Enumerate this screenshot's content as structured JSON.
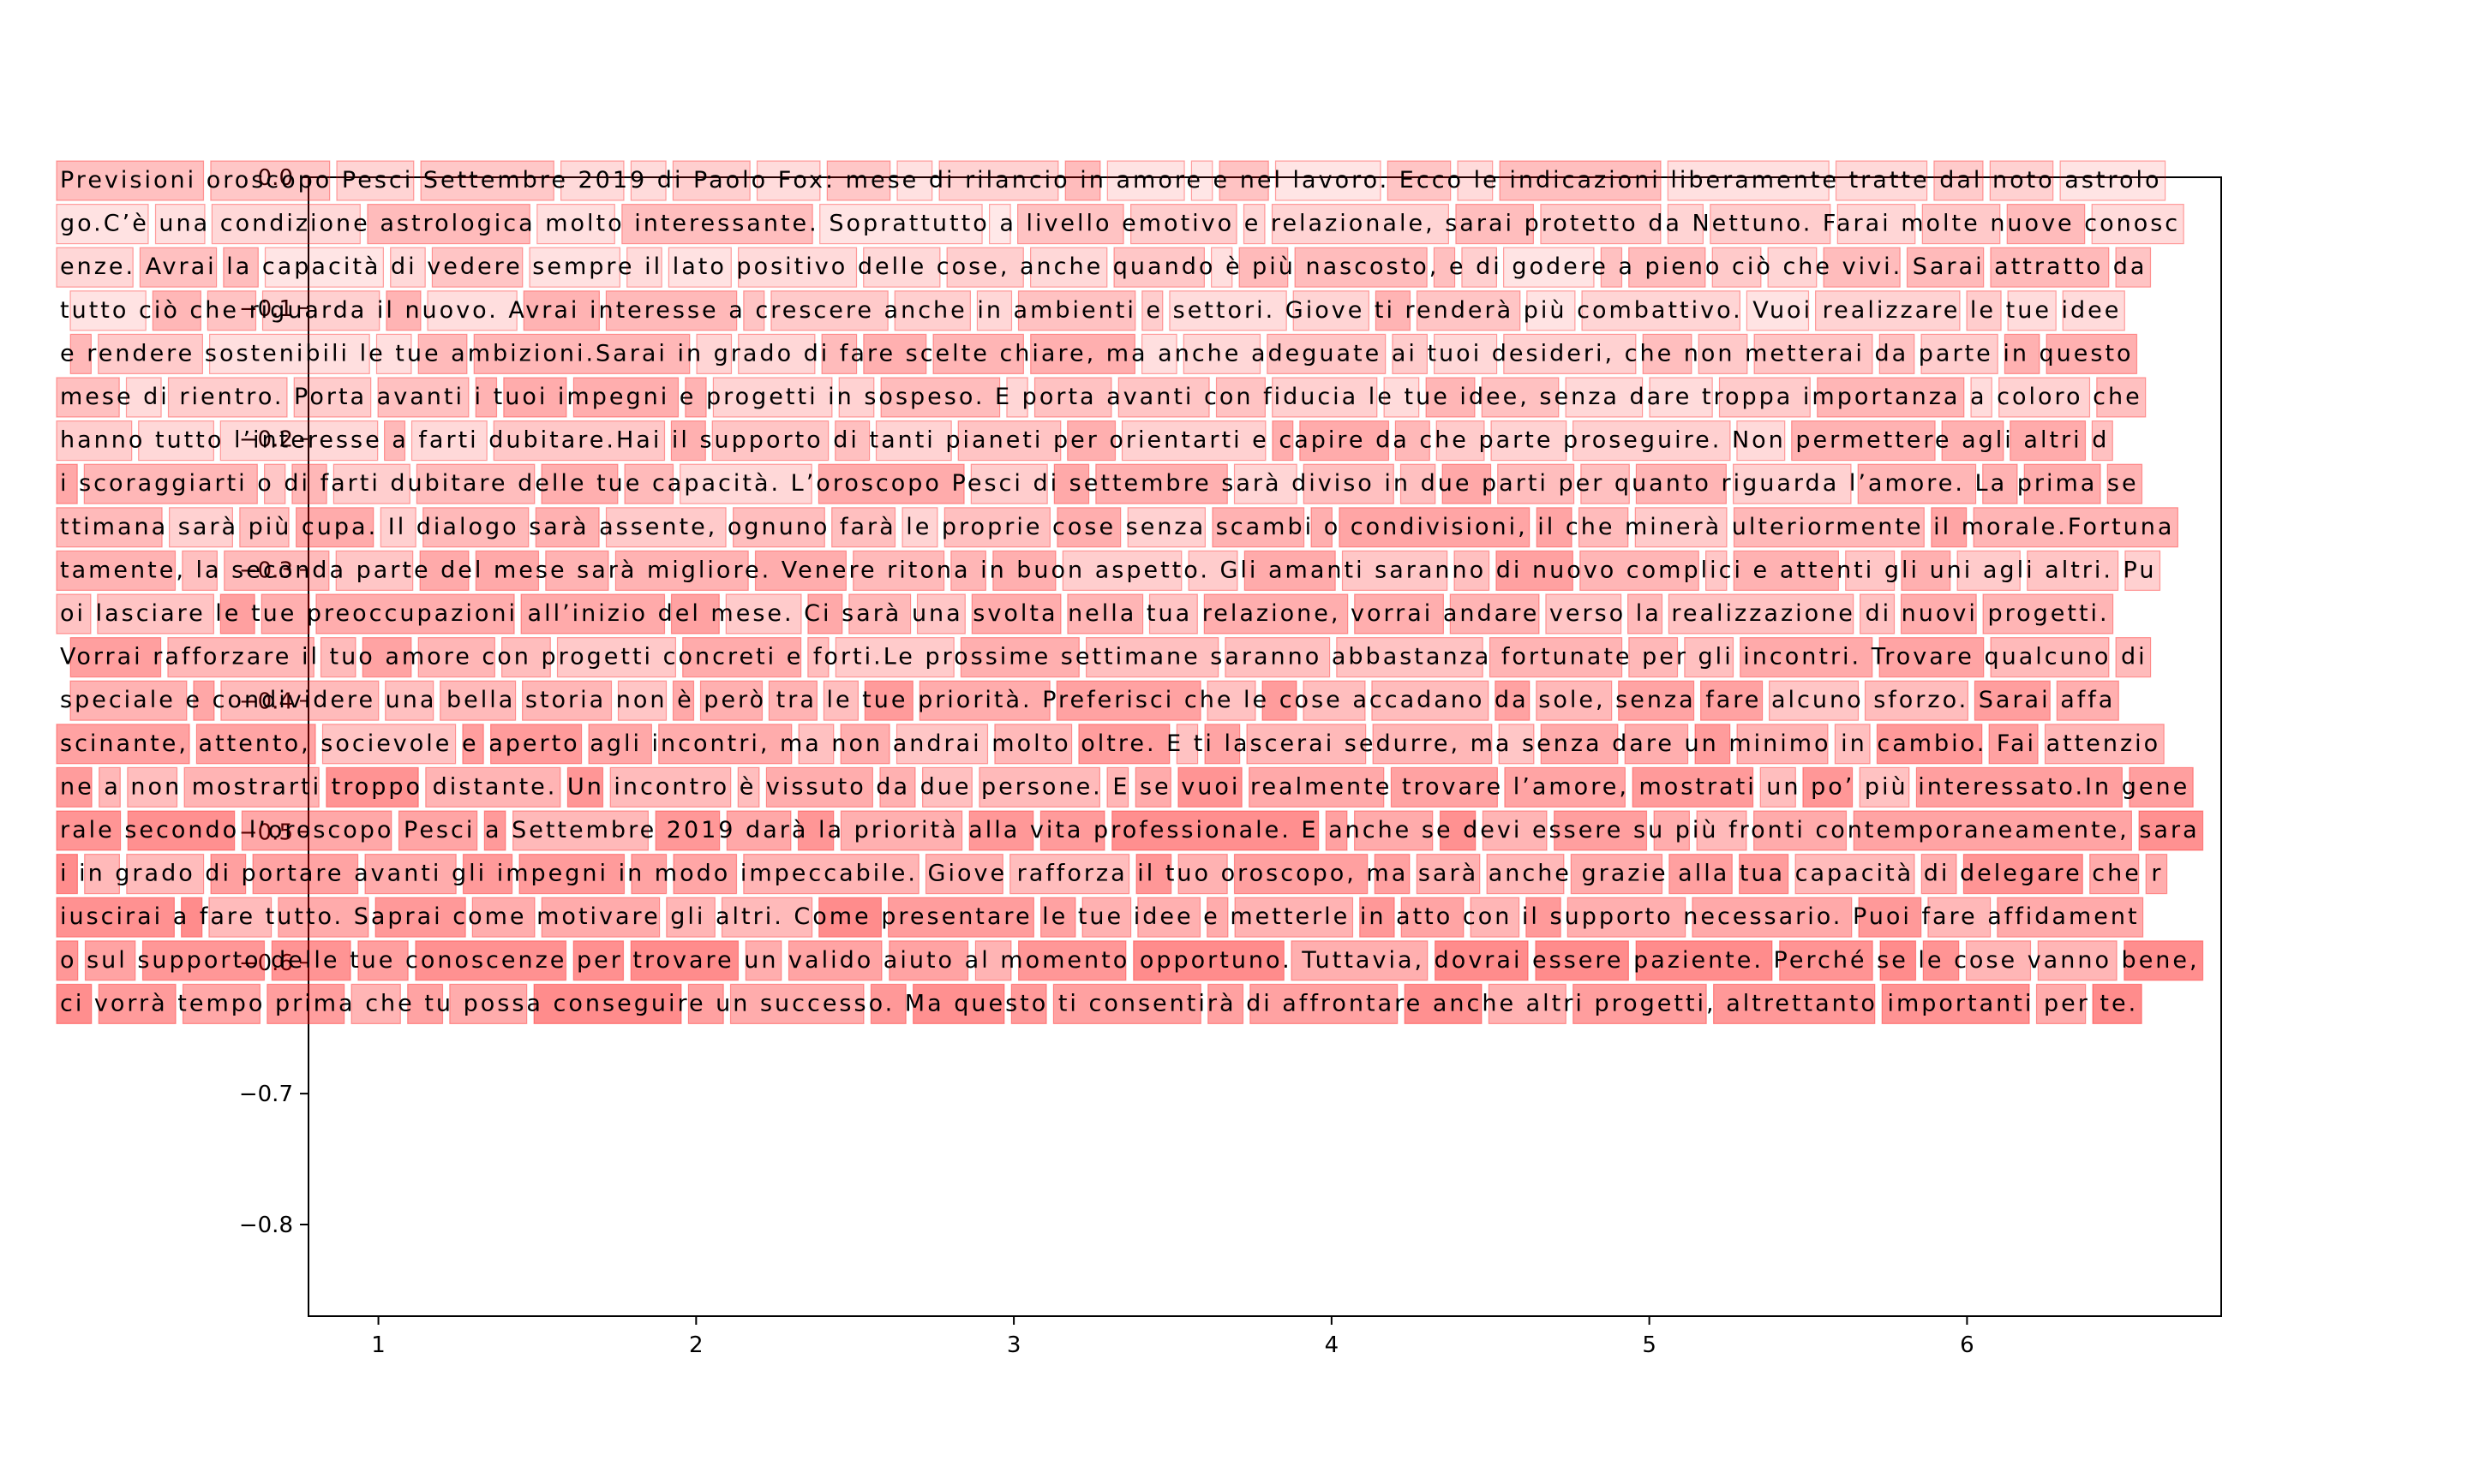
{
  "chart_data": {
    "type": "heatmap",
    "title": "",
    "xlabel": "",
    "ylabel": "",
    "xlim": [
      0.78,
      6.8
    ],
    "ylim": [
      -0.87,
      0.0
    ],
    "grid": false,
    "x_ticks": [
      1,
      2,
      3,
      4,
      5,
      6
    ],
    "y_ticks": [
      0.0,
      -0.1,
      -0.2,
      -0.3,
      -0.4,
      -0.5,
      -0.6,
      -0.7,
      -0.8
    ],
    "x_tick_labels": [
      "1",
      "2",
      "3",
      "4",
      "5",
      "6"
    ],
    "y_tick_labels": [
      "0.0",
      "−0.1",
      "−0.2",
      "−0.3",
      "−0.4",
      "−0.5",
      "−0.6",
      "−0.7",
      "−0.8"
    ],
    "highlight_color": "#ff0000",
    "text_lines": [
      "Previsioni oroscopo Pesci Settembre 2019 di Paolo Fox: mese di rilancio in amore e nel lavoro. Ecco le indicazioni liberamente tratte dal noto astrolo",
      "go.C’è una condizione astrologica molto interessante. Soprattutto a livello emotivo e relazionale, sarai protetto da Nettuno. Farai molte nuove conosc",
      "enze. Avrai la capacità di vedere sempre il lato positivo delle cose, anche quando è più nascosto, e di godere a pieno ciò che vivi. Sarai attratto da",
      " tutto ciò che riguarda il nuovo. Avrai interesse a crescere anche in ambienti e settori. Giove ti renderà più combattivo. Vuoi realizzare le tue idee",
      " e rendere sostenibili le tue ambizioni.Sarai in grado di fare scelte chiare, ma anche adeguate ai tuoi desideri, che non metterai da parte in questo",
      "mese di rientro. Porta avanti i tuoi impegni e progetti in sospeso. E porta avanti con fiducia le tue idee, senza dare troppa importanza a coloro che",
      "hanno tutto l’interesse a farti dubitare.Hai il supporto di tanti pianeti per orientarti e capire da che parte proseguire. Non permettere agli altri d",
      "i scoraggiarti o di farti dubitare delle tue capacità. L’oroscopo Pesci di settembre sarà diviso in due parti per quanto riguarda l’amore. La prima se",
      "ttimana sarà più cupa. Il dialogo sarà assente, ognuno farà le proprie cose senza scambi o condivisioni, il che minerà ulteriormente il morale.Fortuna",
      "tamente, la seconda parte del mese sarà migliore. Venere ritona in buon aspetto. Gli amanti saranno di nuovo complici e attenti gli uni agli altri. Pu",
      "oi lasciare le tue preoccupazioni all’inizio del mese. Ci sarà una svolta nella tua relazione, vorrai andare verso la realizzazione di nuovi progetti.",
      " Vorrai rafforzare il tuo amore con progetti concreti e forti.Le prossime settimane saranno abbastanza fortunate per gli incontri. Trovare qualcuno di",
      " speciale e condividere una bella storia non è però tra le tue priorità. Preferisci che le cose accadano da sole, senza fare alcuno sforzo. Sarai affa",
      "scinante, attento, socievole e aperto agli incontri, ma non andrai molto oltre. E ti lascerai sedurre, ma senza dare un minimo in cambio. Fai attenzio",
      "ne a non mostrarti troppo distante. Un incontro è vissuto da due persone. E se vuoi realmente trovare l’amore, mostrati un po’ più interessato.In gene",
      "rale secondo l’oroscopo Pesci a Settembre 2019 darà la priorità alla vita professionale. E anche se devi essere su più fronti contemporaneamente, sara",
      "i in grado di portare avanti gli impegni in modo impeccabile. Giove rafforza il tuo oroscopo, ma sarà anche grazie alla tua capacità di delegare che r",
      "iuscirai a fare tutto. Saprai come motivare gli altri. Come presentare le tue idee e metterle in atto con il supporto necessario. Puoi fare affidament",
      "o sul supporto delle tue conoscenze per trovare un valido aiuto al momento opportuno. Tuttavia, dovrai essere paziente. Perché se le cose vanno bene,",
      "ci vorrà tempo prima che tu possa conseguire un successo. Ma questo ti consentirà di affrontare anche altri progetti, altrettanto importanti per te."
    ]
  }
}
